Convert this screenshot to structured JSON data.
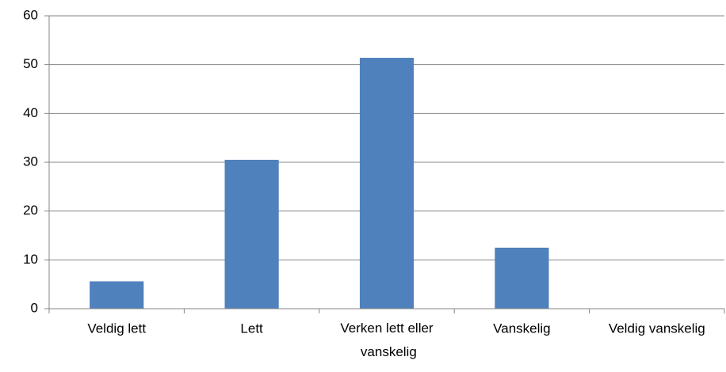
{
  "chart_data": {
    "type": "bar",
    "categories": [
      "Veldig lett",
      "Lett",
      "Verken lett eller vanskelig",
      "Vanskelig",
      "Veldig vanskelig"
    ],
    "values": [
      5.6,
      30.5,
      51.4,
      12.5,
      0
    ],
    "color": "#4f81bd",
    "ylim": [
      0,
      60
    ],
    "yticks": [
      0,
      10,
      20,
      30,
      40,
      50,
      60
    ],
    "grid": true
  }
}
